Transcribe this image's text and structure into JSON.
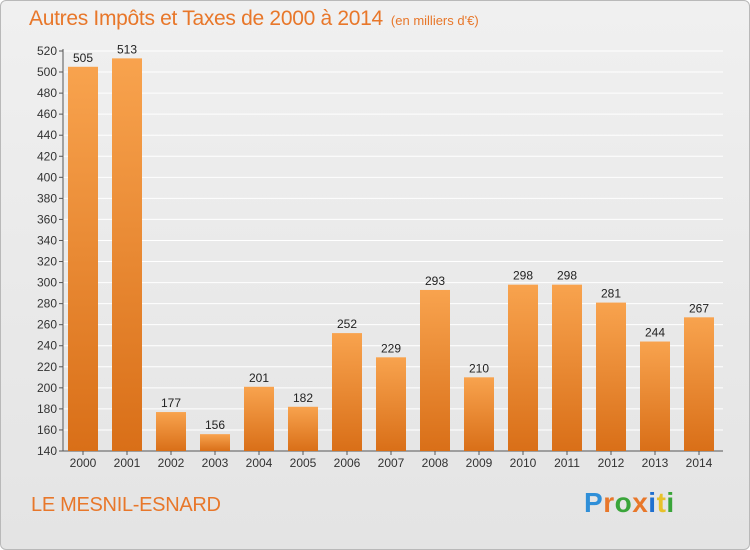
{
  "header": {
    "title": "Autres Impôts et Taxes de 2000 à 2014",
    "subtitle": "(en milliers d'€)"
  },
  "footer": {
    "location": "LE MESNIL-ESNARD",
    "logo_text": "Proxiti",
    "logo_colors": [
      "#2f8fd8",
      "#e8772a",
      "#3aa53a",
      "#e8772a",
      "#1f6fd0",
      "#e8c12a",
      "#3aa53a"
    ]
  },
  "colors": {
    "bar_light": "#f8a34e",
    "bar_dark": "#d96f18",
    "grid": "#ffffff",
    "accent": "#e8772a"
  },
  "chart_data": {
    "type": "bar",
    "title": "Autres Impôts et Taxes de 2000 à 2014",
    "subtitle": "(en milliers d'€)",
    "categories": [
      "2000",
      "2001",
      "2002",
      "2003",
      "2004",
      "2005",
      "2006",
      "2007",
      "2008",
      "2009",
      "2010",
      "2011",
      "2012",
      "2013",
      "2014"
    ],
    "values": [
      505,
      513,
      177,
      156,
      201,
      182,
      252,
      229,
      293,
      210,
      298,
      298,
      281,
      244,
      267
    ],
    "ylim": [
      140,
      520
    ],
    "yticks": [
      140,
      160,
      180,
      200,
      220,
      240,
      260,
      280,
      300,
      320,
      340,
      360,
      380,
      400,
      420,
      440,
      460,
      480,
      500,
      520
    ],
    "grid": true,
    "xlabel": "",
    "ylabel": ""
  }
}
